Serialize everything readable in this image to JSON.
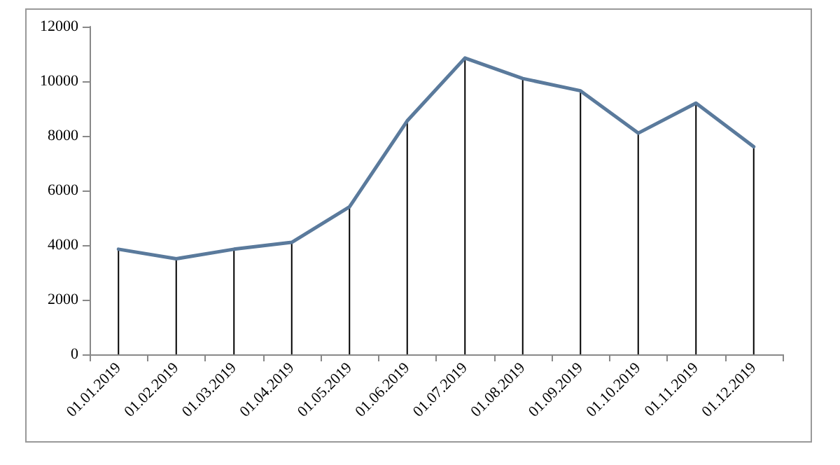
{
  "chart_data": {
    "type": "line",
    "categories": [
      "01.01.2019",
      "01.02.2019",
      "01.03.2019",
      "01.04.2019",
      "01.05.2019",
      "01.06.2019",
      "01.07.2019",
      "01.08.2019",
      "01.09.2019",
      "01.10.2019",
      "01.11.2019",
      "01.12.2019"
    ],
    "series": [
      {
        "color": "#5a7a9c",
        "values": [
          3850,
          3500,
          3850,
          4100,
          5400,
          8550,
          10850,
          10100,
          9650,
          8100,
          9200,
          7600
        ],
        "errors": [
          [
            0,
            3850
          ],
          [
            0,
            3500
          ],
          [
            0,
            3850
          ],
          [
            0,
            4100
          ],
          [
            0,
            5400
          ],
          [
            0,
            8550
          ],
          [
            0,
            10850
          ],
          [
            0,
            10100
          ],
          [
            0,
            9650
          ],
          [
            0,
            8100
          ],
          [
            0,
            9200
          ],
          [
            0,
            7600
          ]
        ]
      }
    ],
    "ylim": [
      0,
      12000
    ],
    "yticks": [
      0,
      2000,
      4000,
      6000,
      8000,
      10000,
      12000
    ],
    "grid": false,
    "marker": "none",
    "line_style": "solid"
  }
}
